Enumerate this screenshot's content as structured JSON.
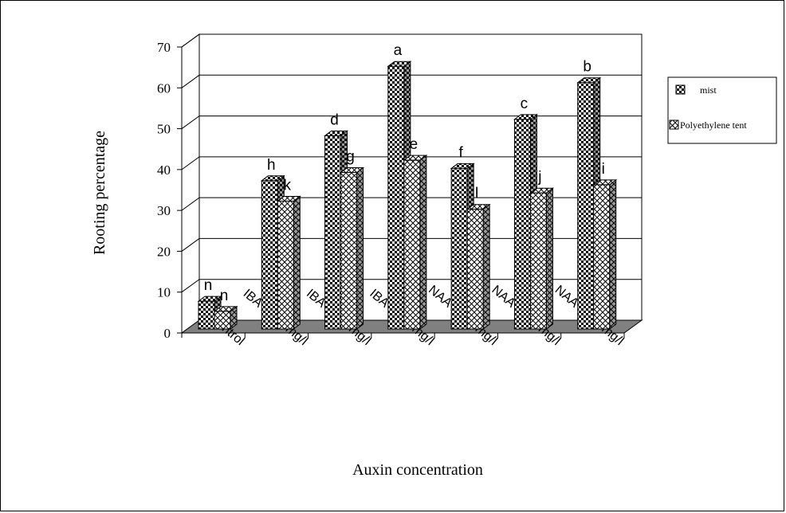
{
  "chart_data": {
    "type": "bar",
    "title": "",
    "xlabel": "Auxin concentration",
    "ylabel": "Rooting  percentage",
    "ylim": [
      0,
      70
    ],
    "yticks": [
      0,
      10,
      20,
      30,
      40,
      50,
      60,
      70
    ],
    "grid": true,
    "legend_position": "right",
    "categories": [
      "Control",
      "IBA 2000 mg/l",
      "IBA 3000 mg/l",
      "IBA 4000 mg/l",
      "NAA 2000 mg/l",
      "NAA 3000 mg/l",
      "NAA 4000 mg/l"
    ],
    "series": [
      {
        "name": "mist",
        "values": [
          7,
          36.5,
          47.5,
          64.5,
          39.5,
          51.5,
          60.5
        ],
        "labels": [
          "n",
          "h",
          "d",
          "a",
          "f",
          "c",
          "b"
        ]
      },
      {
        "name": "Polyethylene tent",
        "values": [
          4.5,
          31.5,
          38.5,
          41.5,
          29.5,
          33.5,
          35.5
        ],
        "labels": [
          "n",
          "k",
          "g",
          "e",
          "l",
          "j",
          "i"
        ]
      }
    ]
  },
  "colors": {
    "floor": "#808080",
    "grid": "#000000",
    "frame": "#000000"
  }
}
